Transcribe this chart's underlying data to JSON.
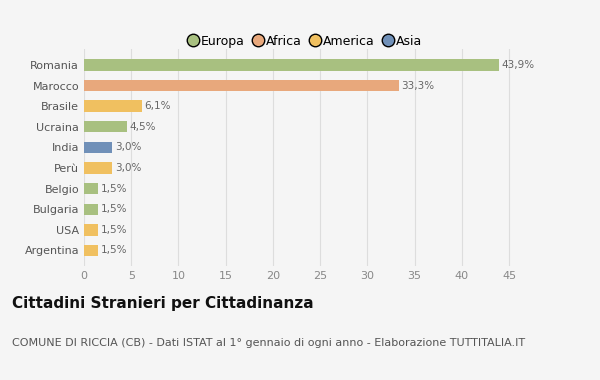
{
  "categories": [
    "Romania",
    "Marocco",
    "Brasile",
    "Ucraina",
    "India",
    "Perù",
    "Belgio",
    "Bulgaria",
    "USA",
    "Argentina"
  ],
  "values": [
    43.9,
    33.3,
    6.1,
    4.5,
    3.0,
    3.0,
    1.5,
    1.5,
    1.5,
    1.5
  ],
  "labels": [
    "43,9%",
    "33,3%",
    "6,1%",
    "4,5%",
    "3,0%",
    "3,0%",
    "1,5%",
    "1,5%",
    "1,5%",
    "1,5%"
  ],
  "colors": [
    "#a8c080",
    "#e8a87c",
    "#f0c060",
    "#a8c080",
    "#7090b8",
    "#f0c060",
    "#a8c080",
    "#a8c080",
    "#f0c060",
    "#f0c060"
  ],
  "legend_labels": [
    "Europa",
    "Africa",
    "America",
    "Asia"
  ],
  "legend_colors": [
    "#a8c080",
    "#e8a87c",
    "#f0c060",
    "#7090b8"
  ],
  "title": "Cittadini Stranieri per Cittadinanza",
  "subtitle": "COMUNE DI RICCIA (CB) - Dati ISTAT al 1° gennaio di ogni anno - Elaborazione TUTTITALIA.IT",
  "xlim": [
    0,
    47
  ],
  "xticks": [
    0,
    5,
    10,
    15,
    20,
    25,
    30,
    35,
    40,
    45
  ],
  "background_color": "#f5f5f5",
  "grid_color": "#dddddd",
  "bar_height": 0.55,
  "title_fontsize": 11,
  "subtitle_fontsize": 8
}
